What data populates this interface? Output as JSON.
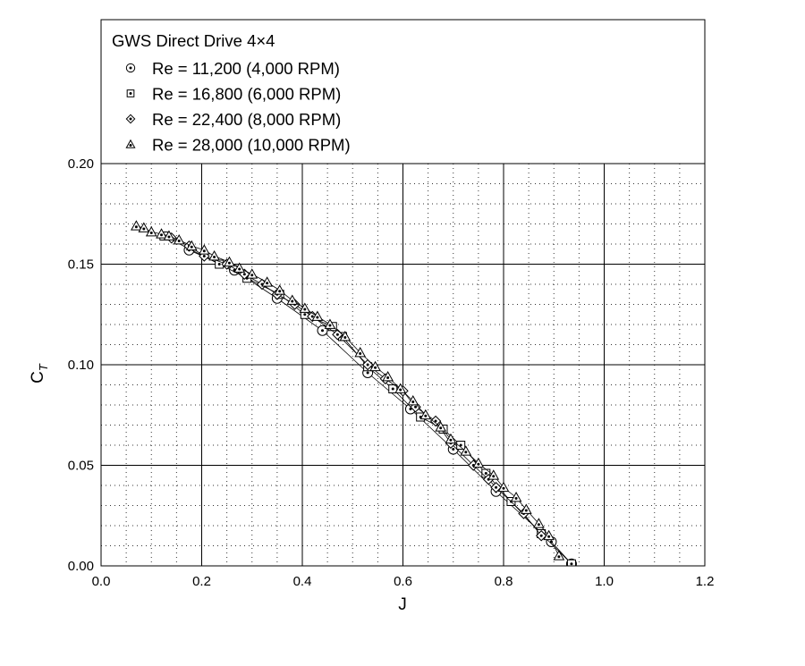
{
  "chart_data": {
    "type": "line",
    "title": "GWS Direct Drive 4×4",
    "xlabel": "J",
    "ylabel_main": "C",
    "ylabel_sub": "T",
    "xlim": [
      0.0,
      1.2
    ],
    "ylim": [
      0.0,
      0.2
    ],
    "x_ticks": [
      "0.0",
      "0.2",
      "0.4",
      "0.6",
      "0.8",
      "1.0",
      "1.2"
    ],
    "y_ticks": [
      "0.00",
      "0.05",
      "0.10",
      "0.15",
      "0.20"
    ],
    "grid": true,
    "minor_grid": true,
    "legend_position": "top",
    "series": [
      {
        "name": "Re = 11,200 (4,000 RPM)",
        "marker": "circle-dot",
        "x": [
          0.175,
          0.265,
          0.35,
          0.44,
          0.53,
          0.615,
          0.7,
          0.785,
          0.895,
          0.935
        ],
        "y": [
          0.157,
          0.147,
          0.133,
          0.117,
          0.096,
          0.078,
          0.058,
          0.037,
          0.012,
          0.001
        ]
      },
      {
        "name": "Re = 16,800 (6,000 RPM)",
        "marker": "square-dot",
        "x": [
          0.125,
          0.235,
          0.29,
          0.355,
          0.405,
          0.46,
          0.48,
          0.53,
          0.58,
          0.635,
          0.68,
          0.715,
          0.765,
          0.815,
          0.875,
          0.935
        ],
        "y": [
          0.164,
          0.15,
          0.143,
          0.135,
          0.125,
          0.119,
          0.114,
          0.099,
          0.088,
          0.074,
          0.068,
          0.06,
          0.046,
          0.032,
          0.016,
          0.001
        ]
      },
      {
        "name": "Re = 22,400 (8,000 RPM)",
        "marker": "diamond-dot",
        "x": [
          0.14,
          0.175,
          0.205,
          0.25,
          0.285,
          0.32,
          0.35,
          0.385,
          0.42,
          0.47,
          0.53,
          0.565,
          0.6,
          0.625,
          0.665,
          0.695,
          0.74,
          0.77,
          0.785,
          0.84,
          0.875
        ],
        "y": [
          0.163,
          0.159,
          0.154,
          0.15,
          0.145,
          0.14,
          0.135,
          0.13,
          0.124,
          0.115,
          0.1,
          0.093,
          0.087,
          0.079,
          0.072,
          0.061,
          0.05,
          0.043,
          0.039,
          0.026,
          0.015
        ]
      },
      {
        "name": "Re = 28,000 (10,000 RPM)",
        "marker": "triangle-dot",
        "x": [
          0.07,
          0.085,
          0.1,
          0.12,
          0.135,
          0.155,
          0.18,
          0.205,
          0.225,
          0.255,
          0.275,
          0.3,
          0.33,
          0.355,
          0.38,
          0.405,
          0.43,
          0.455,
          0.485,
          0.515,
          0.545,
          0.57,
          0.595,
          0.62,
          0.645,
          0.675,
          0.695,
          0.725,
          0.75,
          0.78,
          0.8,
          0.825,
          0.845,
          0.87,
          0.89,
          0.91
        ],
        "y": [
          0.169,
          0.168,
          0.166,
          0.165,
          0.164,
          0.162,
          0.159,
          0.157,
          0.154,
          0.151,
          0.148,
          0.145,
          0.141,
          0.137,
          0.132,
          0.128,
          0.124,
          0.12,
          0.114,
          0.106,
          0.099,
          0.094,
          0.088,
          0.082,
          0.075,
          0.069,
          0.063,
          0.057,
          0.051,
          0.045,
          0.039,
          0.034,
          0.028,
          0.021,
          0.015,
          0.005
        ]
      }
    ]
  }
}
